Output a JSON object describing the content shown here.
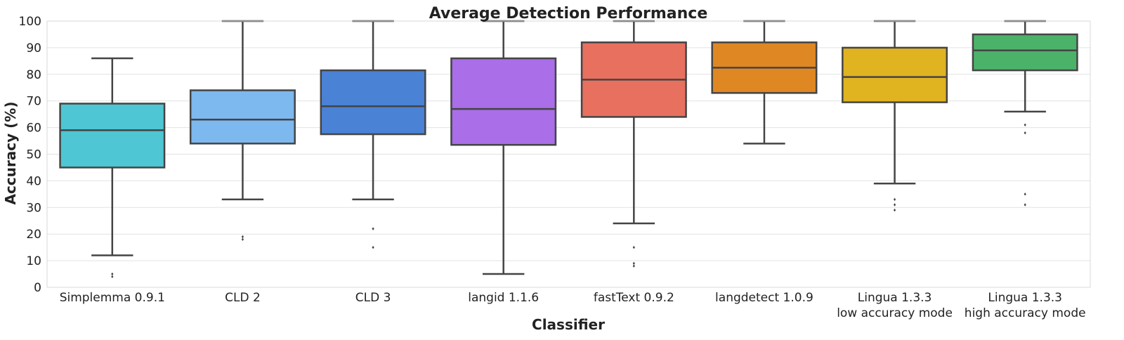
{
  "chart_data": {
    "type": "box",
    "title": "Average Detection Performance",
    "xlabel": "Classifier",
    "ylabel": "Accuracy (%)",
    "ylim": [
      0,
      100
    ],
    "yticks": [
      0,
      10,
      20,
      30,
      40,
      50,
      60,
      70,
      80,
      90,
      100
    ],
    "grid": true,
    "categories": [
      {
        "label": "Simplemma 0.9.1",
        "sublabel": "",
        "color": "#4ec6d3",
        "whisker_low": 12,
        "q1": 45,
        "median": 59,
        "q3": 69,
        "whisker_high": 86,
        "outliers": [
          4,
          5
        ]
      },
      {
        "label": "CLD 2",
        "sublabel": "",
        "color": "#7db8ee",
        "whisker_low": 33,
        "q1": 54,
        "median": 63,
        "q3": 74,
        "whisker_high": 100,
        "outliers": [
          18,
          19
        ]
      },
      {
        "label": "CLD 3",
        "sublabel": "",
        "color": "#4a82d6",
        "whisker_low": 33,
        "q1": 57.5,
        "median": 68,
        "q3": 81.5,
        "whisker_high": 100,
        "outliers": [
          15,
          22
        ]
      },
      {
        "label": "langid 1.1.6",
        "sublabel": "",
        "color": "#a96ee8",
        "whisker_low": 5,
        "q1": 53.5,
        "median": 67,
        "q3": 86,
        "whisker_high": 100,
        "outliers": []
      },
      {
        "label": "fastText 0.9.2",
        "sublabel": "",
        "color": "#e8705f",
        "whisker_low": 24,
        "q1": 64,
        "median": 78,
        "q3": 92,
        "whisker_high": 100,
        "outliers": [
          8,
          9,
          15
        ]
      },
      {
        "label": "langdetect 1.0.9",
        "sublabel": "",
        "color": "#df8722",
        "whisker_low": 54,
        "q1": 73,
        "median": 82.5,
        "q3": 92,
        "whisker_high": 100,
        "outliers": []
      },
      {
        "label": "Lingua 1.3.3",
        "sublabel": "low accuracy mode",
        "color": "#e0b321",
        "whisker_low": 39,
        "q1": 69.5,
        "median": 79,
        "q3": 90,
        "whisker_high": 100,
        "outliers": [
          29,
          31,
          33
        ]
      },
      {
        "label": "Lingua 1.3.3",
        "sublabel": "high accuracy mode",
        "color": "#4bb26a",
        "whisker_low": 66,
        "q1": 81.5,
        "median": 89,
        "q3": 95,
        "whisker_high": 100,
        "outliers": [
          31,
          35,
          58,
          61
        ]
      }
    ]
  }
}
